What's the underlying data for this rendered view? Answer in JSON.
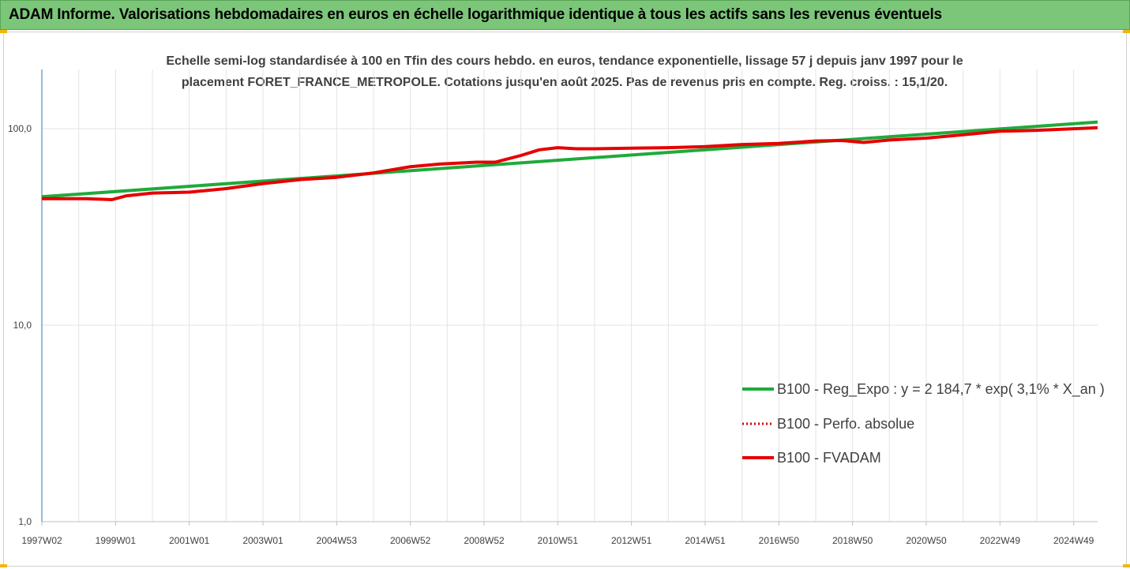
{
  "header": {
    "title": "ADAM Informe. Valorisations hebdomadaires en euros en échelle logarithmique identique à tous les actifs sans les revenus éventuels"
  },
  "chart_data": {
    "type": "line",
    "subtitle_line1": "Echelle semi-log standardisée à 100 en Tfin des cours hebdo. en euros, tendance exponentielle, lissage 57 j depuis janv 1997 pour le",
    "subtitle_line2": "placement FORET_FRANCE_METROPOLE. Cotations jusqu'en août 2025. Pas de revenus pris en compte. Reg. croiss. : 15,1/20.",
    "y_scale": "log",
    "ylim": [
      1,
      200
    ],
    "y_ticks": [
      {
        "value": 1,
        "label": "1,0"
      },
      {
        "value": 10,
        "label": "10,0"
      },
      {
        "value": 100,
        "label": "100,0"
      }
    ],
    "x_range": [
      1997.0,
      2025.65
    ],
    "x_ticks": [
      {
        "pos": 1997.0,
        "label": "1997W02"
      },
      {
        "pos": 1999.0,
        "label": "1999W01"
      },
      {
        "pos": 2001.0,
        "label": "2001W01"
      },
      {
        "pos": 2003.0,
        "label": "2003W01"
      },
      {
        "pos": 2005.0,
        "label": "2004W53"
      },
      {
        "pos": 2007.0,
        "label": "2006W52"
      },
      {
        "pos": 2009.0,
        "label": "2008W52"
      },
      {
        "pos": 2011.0,
        "label": "2010W51"
      },
      {
        "pos": 2013.0,
        "label": "2012W51"
      },
      {
        "pos": 2015.0,
        "label": "2014W51"
      },
      {
        "pos": 2017.0,
        "label": "2016W50"
      },
      {
        "pos": 2019.0,
        "label": "2018W50"
      },
      {
        "pos": 2021.0,
        "label": "2020W50"
      },
      {
        "pos": 2023.0,
        "label": "2022W49"
      },
      {
        "pos": 2025.0,
        "label": "2024W49"
      }
    ],
    "grid": "vertical",
    "legend_position": "lower-right",
    "series": [
      {
        "name": "B100 - Reg_Expo : y = 2 184,7 * exp( 3,1% *  X_an )",
        "color": "#1faa3c",
        "style": "solid",
        "x": [
          1997.0,
          2025.65
        ],
        "y": [
          45.0,
          108.0
        ]
      },
      {
        "name": "B100 - Perfo. absolue",
        "color": "#d40000",
        "style": "dotted",
        "x": [
          1997.0,
          1998.2,
          1998.9,
          1999.3,
          2000.0,
          2001.0,
          2002.0,
          2003.0,
          2004.0,
          2005.0,
          2006.0,
          2007.0,
          2007.8,
          2008.8,
          2009.3,
          2010.0,
          2010.5,
          2011.0,
          2011.5,
          2012.0,
          2013.0,
          2014.0,
          2015.0,
          2016.0,
          2017.0,
          2018.0,
          2018.7,
          2019.3,
          2020.0,
          2021.0,
          2022.0,
          2023.0,
          2024.0,
          2025.65
        ],
        "y": [
          44.0,
          44.0,
          43.5,
          45.5,
          47.0,
          47.5,
          49.5,
          52.5,
          55.0,
          56.5,
          59.5,
          64.0,
          66.0,
          67.5,
          67.5,
          73.0,
          78.0,
          80.0,
          79.0,
          79.0,
          79.5,
          80.0,
          81.0,
          83.0,
          84.0,
          86.5,
          87.0,
          85.0,
          87.5,
          89.5,
          93.0,
          97.0,
          98.0,
          101.0
        ]
      },
      {
        "name": "B100 - FVADAM",
        "color": "#e60000",
        "style": "solid",
        "x": [
          1997.0,
          1998.2,
          1998.9,
          1999.3,
          2000.0,
          2001.0,
          2002.0,
          2003.0,
          2004.0,
          2005.0,
          2006.0,
          2007.0,
          2007.8,
          2008.8,
          2009.3,
          2010.0,
          2010.5,
          2011.0,
          2011.5,
          2012.0,
          2013.0,
          2014.0,
          2015.0,
          2016.0,
          2017.0,
          2018.0,
          2018.7,
          2019.3,
          2020.0,
          2021.0,
          2022.0,
          2023.0,
          2024.0,
          2025.65
        ],
        "y": [
          44.0,
          44.0,
          43.5,
          45.5,
          47.0,
          47.5,
          49.5,
          52.5,
          55.0,
          56.5,
          59.5,
          64.0,
          66.0,
          67.5,
          67.5,
          73.0,
          78.0,
          80.0,
          79.0,
          79.0,
          79.5,
          80.0,
          81.0,
          83.0,
          84.0,
          86.5,
          87.0,
          85.0,
          87.5,
          89.5,
          93.0,
          97.0,
          98.0,
          101.0
        ]
      }
    ]
  }
}
